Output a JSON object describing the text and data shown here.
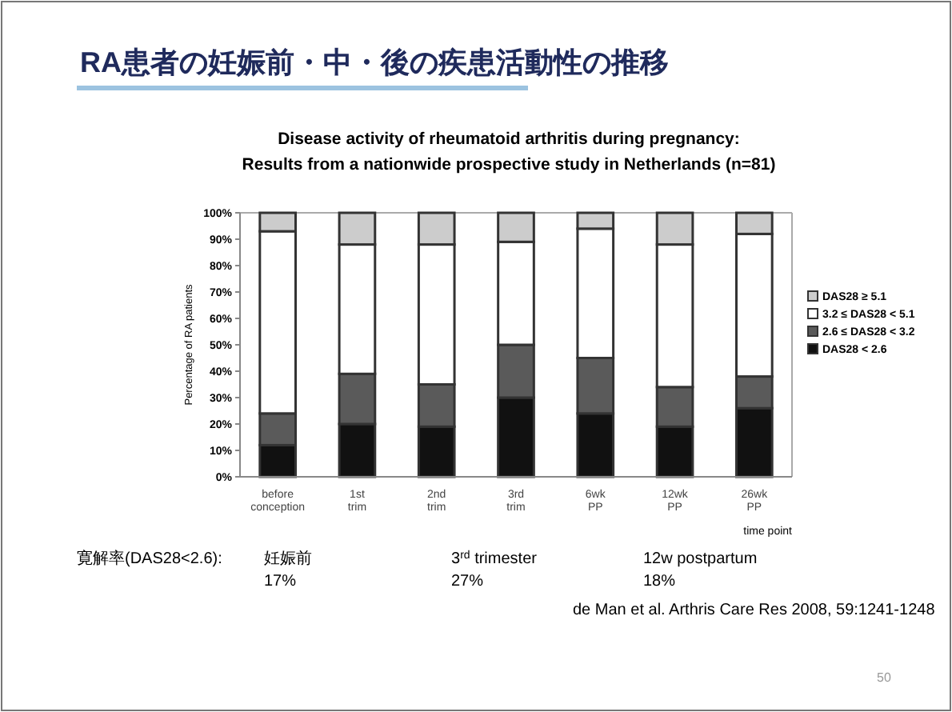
{
  "chart_data": {
    "type": "bar",
    "stacked": true,
    "title": "RA患者の妊娠前・中・後の疾患活動性の推移",
    "subtitle": "Disease activity of rheumatoid arthritis during pregnancy:\nResults from a nationwide prospective study in Netherlands (n=81)",
    "xlabel": "time point",
    "ylabel": "Percentage of RA patients",
    "categories": [
      "before conception",
      "1st trim",
      "2nd trim",
      "3rd trim",
      "6wk PP",
      "12wk PP",
      "26wk PP"
    ],
    "series": [
      {
        "name": "DAS28 < 2.6",
        "color": "#111111",
        "values": [
          12,
          20,
          19,
          30,
          24,
          19,
          26
        ]
      },
      {
        "name": "2.6 ≤ DAS28 < 3.2",
        "color": "#5a5a5a",
        "values": [
          12,
          19,
          16,
          20,
          21,
          15,
          12
        ]
      },
      {
        "name": "3.2 ≤ DAS28 < 5.1",
        "color": "#ffffff",
        "values": [
          69,
          49,
          53,
          39,
          49,
          54,
          54
        ]
      },
      {
        "name": "DAS28 ≥ 5.1",
        "color": "#cccccc",
        "values": [
          7,
          12,
          12,
          11,
          6,
          12,
          8
        ]
      }
    ],
    "ylim": [
      0,
      100
    ],
    "yticks": [
      {
        "value": 0,
        "label": "0%"
      },
      {
        "value": 10,
        "label": "10%"
      },
      {
        "value": 20,
        "label": "20%"
      },
      {
        "value": 30,
        "label": "30%"
      },
      {
        "value": 40,
        "label": "40%"
      },
      {
        "value": 50,
        "label": "50%"
      },
      {
        "value": 60,
        "label": "60%"
      },
      {
        "value": 70,
        "label": "70%"
      },
      {
        "value": 80,
        "label": "80%"
      },
      {
        "value": 90,
        "label": "90%"
      },
      {
        "value": 100,
        "label": "100%"
      }
    ],
    "legend": "right",
    "grid": false,
    "annotations": [
      "寛解率(DAS28<2.6):",
      "妊娠前\n17%",
      "3$^{rd}$ trimester\n27%",
      "12w postpartum\n18%",
      "de Man et al. Arthris Care Res 2008, 59:1241-1248",
      "50"
    ]
  }
}
